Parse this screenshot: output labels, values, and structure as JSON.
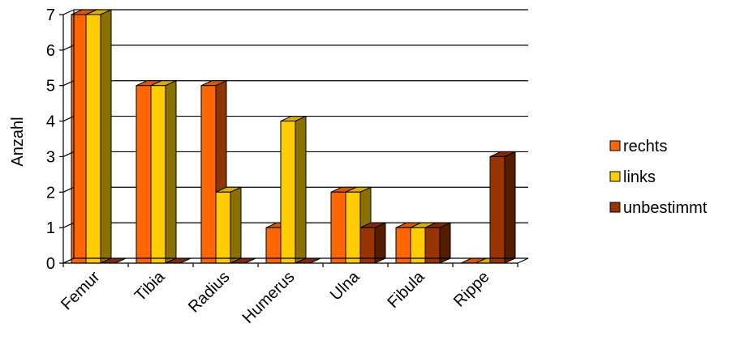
{
  "chart_data": {
    "type": "bar",
    "title": "",
    "xlabel": "",
    "ylabel": "Anzahl",
    "ylim": [
      0,
      7
    ],
    "yticks": [
      0,
      1,
      2,
      3,
      4,
      5,
      6,
      7
    ],
    "grid": "horizontal",
    "legend_position": "right",
    "categories": [
      "Femur",
      "Tibia",
      "Radius",
      "Humerus",
      "Ulna",
      "Fibula",
      "Rippe"
    ],
    "series": [
      {
        "name": "rechts",
        "color": "#FF6600",
        "values": [
          7,
          5,
          5,
          1,
          2,
          1,
          0
        ]
      },
      {
        "name": "links",
        "color": "#FFCC00",
        "values": [
          7,
          5,
          2,
          4,
          2,
          1,
          0
        ]
      },
      {
        "name": "unbestimmt",
        "color": "#993300",
        "values": [
          0,
          0,
          0,
          0,
          1,
          1,
          3
        ]
      }
    ]
  }
}
